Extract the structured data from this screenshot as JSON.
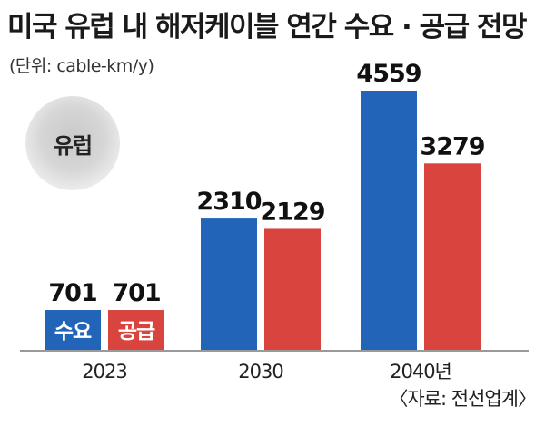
{
  "title": "미국 유럽 내 해저케이블 연간 수요 · 공급 전망",
  "unit": "(단위: cable-km/y)",
  "region": "유럽",
  "source": "〈자료: 전선업계〉",
  "colors": {
    "demand": "#2164b8",
    "supply": "#d9443f"
  },
  "chart_data": {
    "type": "bar",
    "categories": [
      "2023",
      "2030",
      "2040년"
    ],
    "series": [
      {
        "name": "수요",
        "values": [
          701,
          2310,
          4559
        ]
      },
      {
        "name": "공급",
        "values": [
          701,
          2129,
          3279
        ]
      }
    ],
    "ylim": [
      0,
      4559
    ],
    "legend": "inline-bottom-left",
    "grid": false
  }
}
